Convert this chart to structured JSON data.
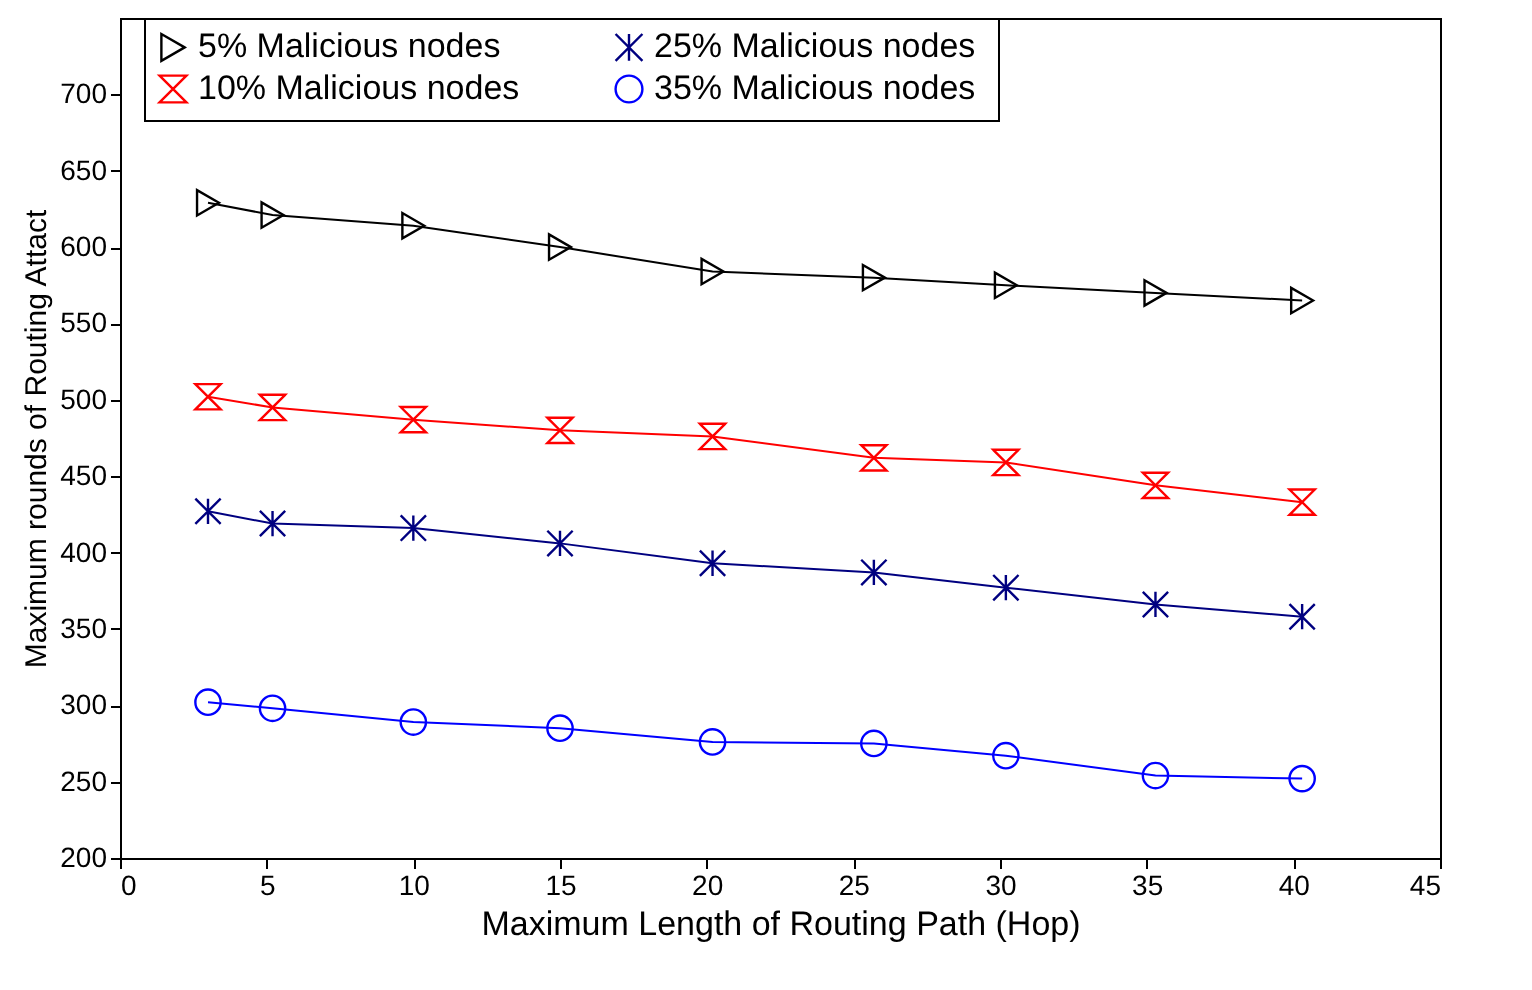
{
  "chart_data": {
    "type": "line",
    "xlabel": "Maximum Length of Routing Path (Hop)",
    "ylabel": "Maximum rounds of Routing Attact",
    "xlim": [
      0,
      45
    ],
    "xticks": [
      0,
      5,
      10,
      15,
      20,
      25,
      30,
      35,
      40,
      45
    ],
    "ylim": [
      200,
      750
    ],
    "yticks": [
      200,
      250,
      300,
      350,
      400,
      450,
      500,
      550,
      600,
      650,
      700
    ],
    "legend": "top",
    "grid": false,
    "line_style": "solid",
    "x": [
      3,
      5.2,
      10,
      15,
      20.2,
      25.7,
      30.2,
      35.3,
      40.3
    ],
    "series": [
      {
        "name": "5%   Malicious nodes",
        "color": "#000000",
        "marker": "triangle",
        "values": [
          629,
          621,
          614,
          600,
          584,
          580,
          575,
          570,
          565
        ]
      },
      {
        "name": "10%  Malicious nodes",
        "color": "#ff0000",
        "marker": "cross",
        "values": [
          502,
          495,
          487,
          480,
          476,
          462,
          459,
          444,
          433
        ]
      },
      {
        "name": "25%  Malicious nodes",
        "color": "#000080",
        "marker": "cross",
        "values": [
          427,
          419,
          416,
          406,
          393,
          387,
          377,
          366,
          358
        ]
      },
      {
        "name": "35%  Malicious nodes",
        "color": "#0000ff",
        "marker": "circle",
        "values": [
          302,
          298,
          289,
          285,
          276,
          275,
          267,
          254,
          252
        ]
      }
    ]
  }
}
